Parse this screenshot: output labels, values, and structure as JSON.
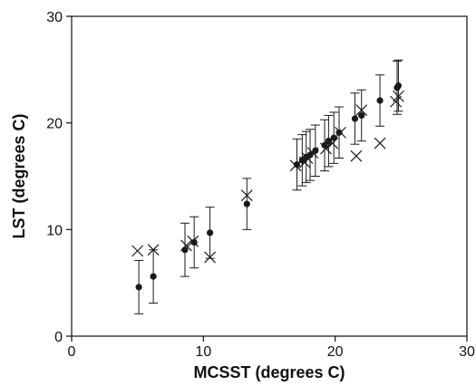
{
  "chart_data": {
    "type": "scatter",
    "title": "",
    "xlabel": "MCSST (degrees C)",
    "ylabel": "LST (degrees C)",
    "xlim": [
      0,
      30
    ],
    "ylim": [
      0,
      30
    ],
    "xticks": [
      0,
      10,
      20,
      30
    ],
    "yticks": [
      0,
      10,
      20,
      30
    ],
    "grid": false,
    "legend": "none",
    "series": [
      {
        "marker": "dot",
        "color": "#1a1a1a",
        "points": [
          {
            "x": 5.1,
            "y": 4.6,
            "err": 2.5
          },
          {
            "x": 6.2,
            "y": 5.6,
            "err": 2.5
          },
          {
            "x": 8.6,
            "y": 8.1,
            "err": 2.5
          },
          {
            "x": 9.3,
            "y": 8.8,
            "err": 2.4
          },
          {
            "x": 10.5,
            "y": 9.7,
            "err": 2.4
          },
          {
            "x": 13.3,
            "y": 12.4,
            "err": 2.4
          },
          {
            "x": 17.1,
            "y": 16.1,
            "err": 2.4
          },
          {
            "x": 17.5,
            "y": 16.5,
            "err": 2.4
          },
          {
            "x": 17.8,
            "y": 16.8,
            "err": 2.4
          },
          {
            "x": 18.1,
            "y": 17.0,
            "err": 2.4
          },
          {
            "x": 18.5,
            "y": 17.4,
            "err": 2.4
          },
          {
            "x": 19.2,
            "y": 17.9,
            "err": 2.4
          },
          {
            "x": 19.5,
            "y": 18.3,
            "err": 2.4
          },
          {
            "x": 19.9,
            "y": 18.6,
            "err": 2.4
          },
          {
            "x": 20.3,
            "y": 19.1,
            "err": 2.4
          },
          {
            "x": 21.5,
            "y": 20.4,
            "err": 2.4
          },
          {
            "x": 22.0,
            "y": 20.7,
            "err": 2.4
          },
          {
            "x": 23.4,
            "y": 22.1,
            "err": 2.4
          },
          {
            "x": 24.7,
            "y": 23.3,
            "err": 2.5
          },
          {
            "x": 24.8,
            "y": 23.5,
            "err": 2.4
          }
        ]
      },
      {
        "marker": "x",
        "color": "#1a1a1a",
        "points": [
          {
            "x": 5.0,
            "y": 8.0
          },
          {
            "x": 6.2,
            "y": 8.1
          },
          {
            "x": 8.7,
            "y": 8.5
          },
          {
            "x": 9.2,
            "y": 8.9
          },
          {
            "x": 10.5,
            "y": 7.4
          },
          {
            "x": 13.3,
            "y": 13.2
          },
          {
            "x": 17.0,
            "y": 16.0
          },
          {
            "x": 17.7,
            "y": 16.3
          },
          {
            "x": 17.9,
            "y": 16.7
          },
          {
            "x": 18.3,
            "y": 17.2
          },
          {
            "x": 19.3,
            "y": 17.6
          },
          {
            "x": 19.8,
            "y": 18.1
          },
          {
            "x": 20.4,
            "y": 19.1
          },
          {
            "x": 21.6,
            "y": 16.9
          },
          {
            "x": 22.0,
            "y": 21.2
          },
          {
            "x": 23.4,
            "y": 18.1
          },
          {
            "x": 24.6,
            "y": 22.0
          },
          {
            "x": 24.8,
            "y": 22.5
          }
        ]
      }
    ]
  }
}
